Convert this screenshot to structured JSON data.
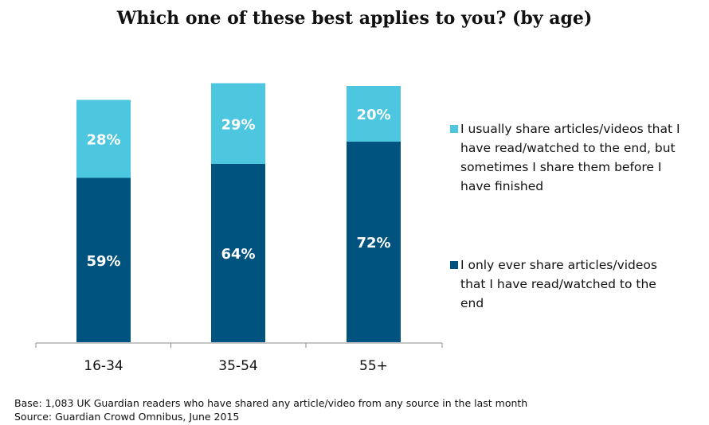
{
  "chart_data": {
    "type": "bar",
    "stacked": true,
    "title": "Which one of these best applies to you? (by age)",
    "categories": [
      "16-34",
      "35-54",
      "55+"
    ],
    "series": [
      {
        "name": "I only ever share articles/videos that I have read/watched to the end",
        "color": "#00527f",
        "values": [
          59,
          64,
          72
        ],
        "labels": [
          "59%",
          "64%",
          "72%"
        ]
      },
      {
        "name": "I usually share articles/videos that I have read/watched to the end, but sometimes I share them before I have finished",
        "color": "#4dc6e0",
        "values": [
          28,
          29,
          20
        ],
        "labels": [
          "28%",
          "29%",
          "20%"
        ]
      }
    ],
    "ylim": [
      0,
      100
    ],
    "grid": false,
    "legend_position": "right"
  },
  "legend": {
    "item1_lines": [
      "I usually share articles/videos that I",
      "have read/watched to the end, but",
      "sometimes I share them before I",
      "have finished"
    ],
    "item2_lines": [
      "I only ever share articles/videos",
      "that I have read/watched to the",
      "end"
    ]
  },
  "footnote": {
    "base": "Base: 1,083 UK Guardian readers who have shared any article/video from any source in the last month",
    "source": "Source: Guardian Crowd Omnibus, June 2015"
  }
}
